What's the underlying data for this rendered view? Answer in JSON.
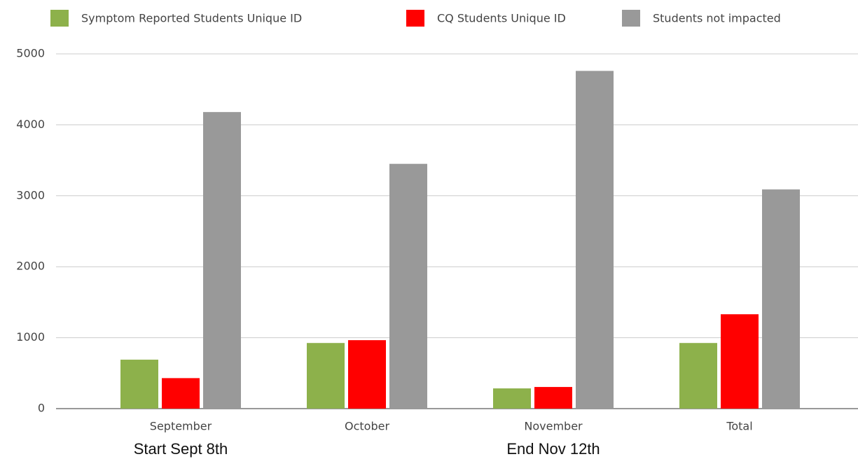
{
  "chart_data": {
    "type": "bar",
    "categories": [
      "September",
      "October",
      "November",
      "Total"
    ],
    "series": [
      {
        "name": "Symptom Reported Students Unique ID",
        "color": "#8db14b",
        "values": [
          690,
          925,
          285,
          925
        ]
      },
      {
        "name": "CQ Students Unique ID",
        "color": "#ff0000",
        "values": [
          430,
          965,
          305,
          1330
        ]
      },
      {
        "name": "Students not impacted",
        "color": "#999999",
        "values": [
          4180,
          3450,
          4760,
          3090
        ]
      }
    ],
    "ylim": [
      0,
      5000
    ],
    "yticks": [
      0,
      1000,
      2000,
      3000,
      4000,
      5000
    ],
    "grid": true,
    "legend": "top",
    "annotations": [
      "Start Sept 8th",
      "End Nov 12th"
    ]
  }
}
